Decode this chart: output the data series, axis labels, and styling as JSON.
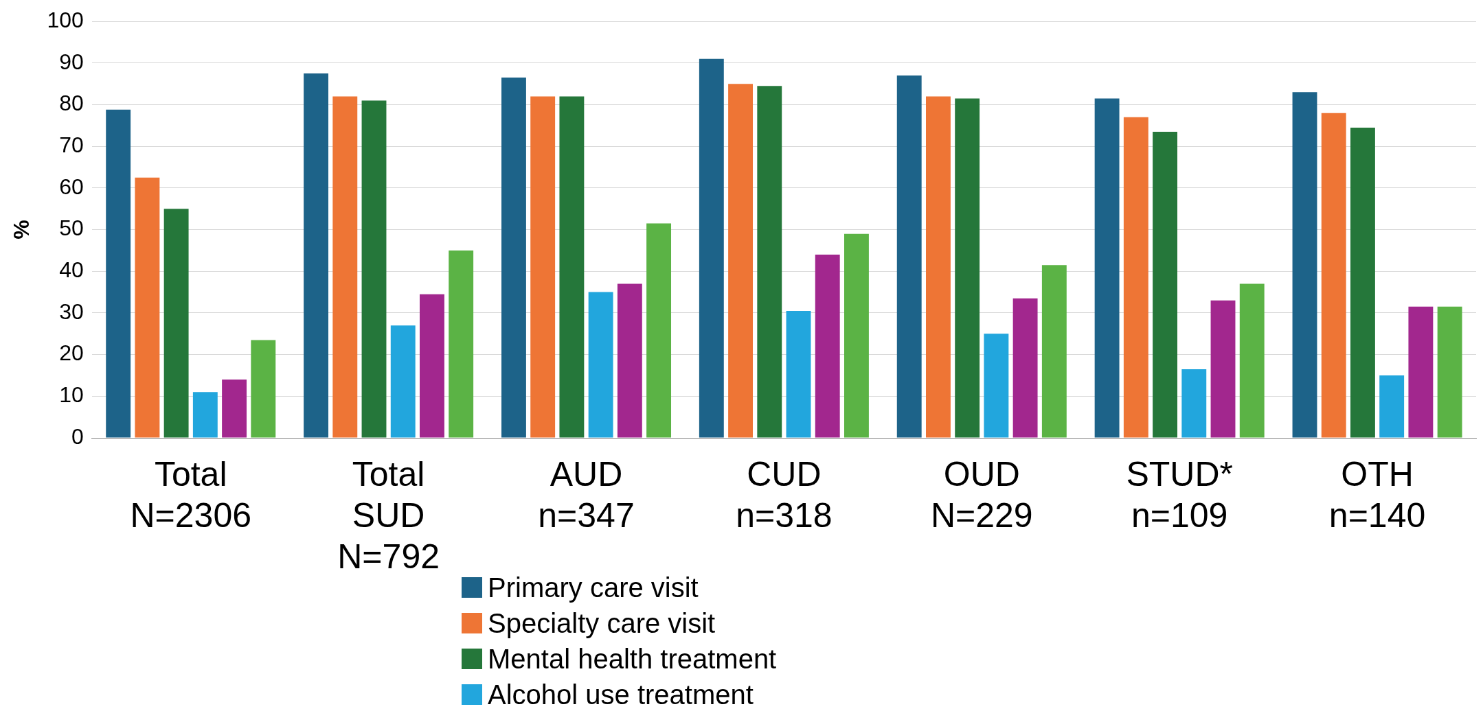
{
  "chart_data": {
    "type": "bar",
    "ylabel": "%",
    "categories": [
      "Total\nN=2306",
      "Total\nSUD\nN=792",
      "AUD\nn=347",
      "CUD\nn=318",
      "OUD\nN=229",
      "STUD*\nn=109",
      "OTH\nn=140"
    ],
    "series": [
      {
        "name": "Primary care visit",
        "color": "#1d6389",
        "values": [
          78.8,
          87.5,
          86.5,
          91,
          87,
          81.5,
          83
        ]
      },
      {
        "name": "Specialty care visit",
        "color": "#ee7535",
        "values": [
          62.5,
          82,
          82,
          85,
          82,
          77,
          78
        ]
      },
      {
        "name": "Mental health treatment",
        "color": "#25773a",
        "values": [
          55,
          81,
          82,
          84.5,
          81.5,
          73.5,
          74.5
        ]
      },
      {
        "name": "Alcohol use treatment",
        "color": "#22a6dd",
        "values": [
          11,
          27,
          35,
          30.5,
          25,
          16.5,
          15
        ]
      },
      {
        "color": "#a2278e",
        "values": [
          14,
          34.5,
          37,
          44,
          33.5,
          33,
          31.5
        ]
      },
      {
        "color": "#5bb345",
        "values": [
          23.5,
          45,
          51.5,
          49,
          41.5,
          37,
          31.5
        ]
      }
    ],
    "ylim": [
      0,
      100
    ],
    "yticks": [
      0,
      10,
      20,
      30,
      40,
      50,
      60,
      70,
      80,
      90,
      100
    ],
    "grid": "y",
    "legend": "bottom"
  }
}
